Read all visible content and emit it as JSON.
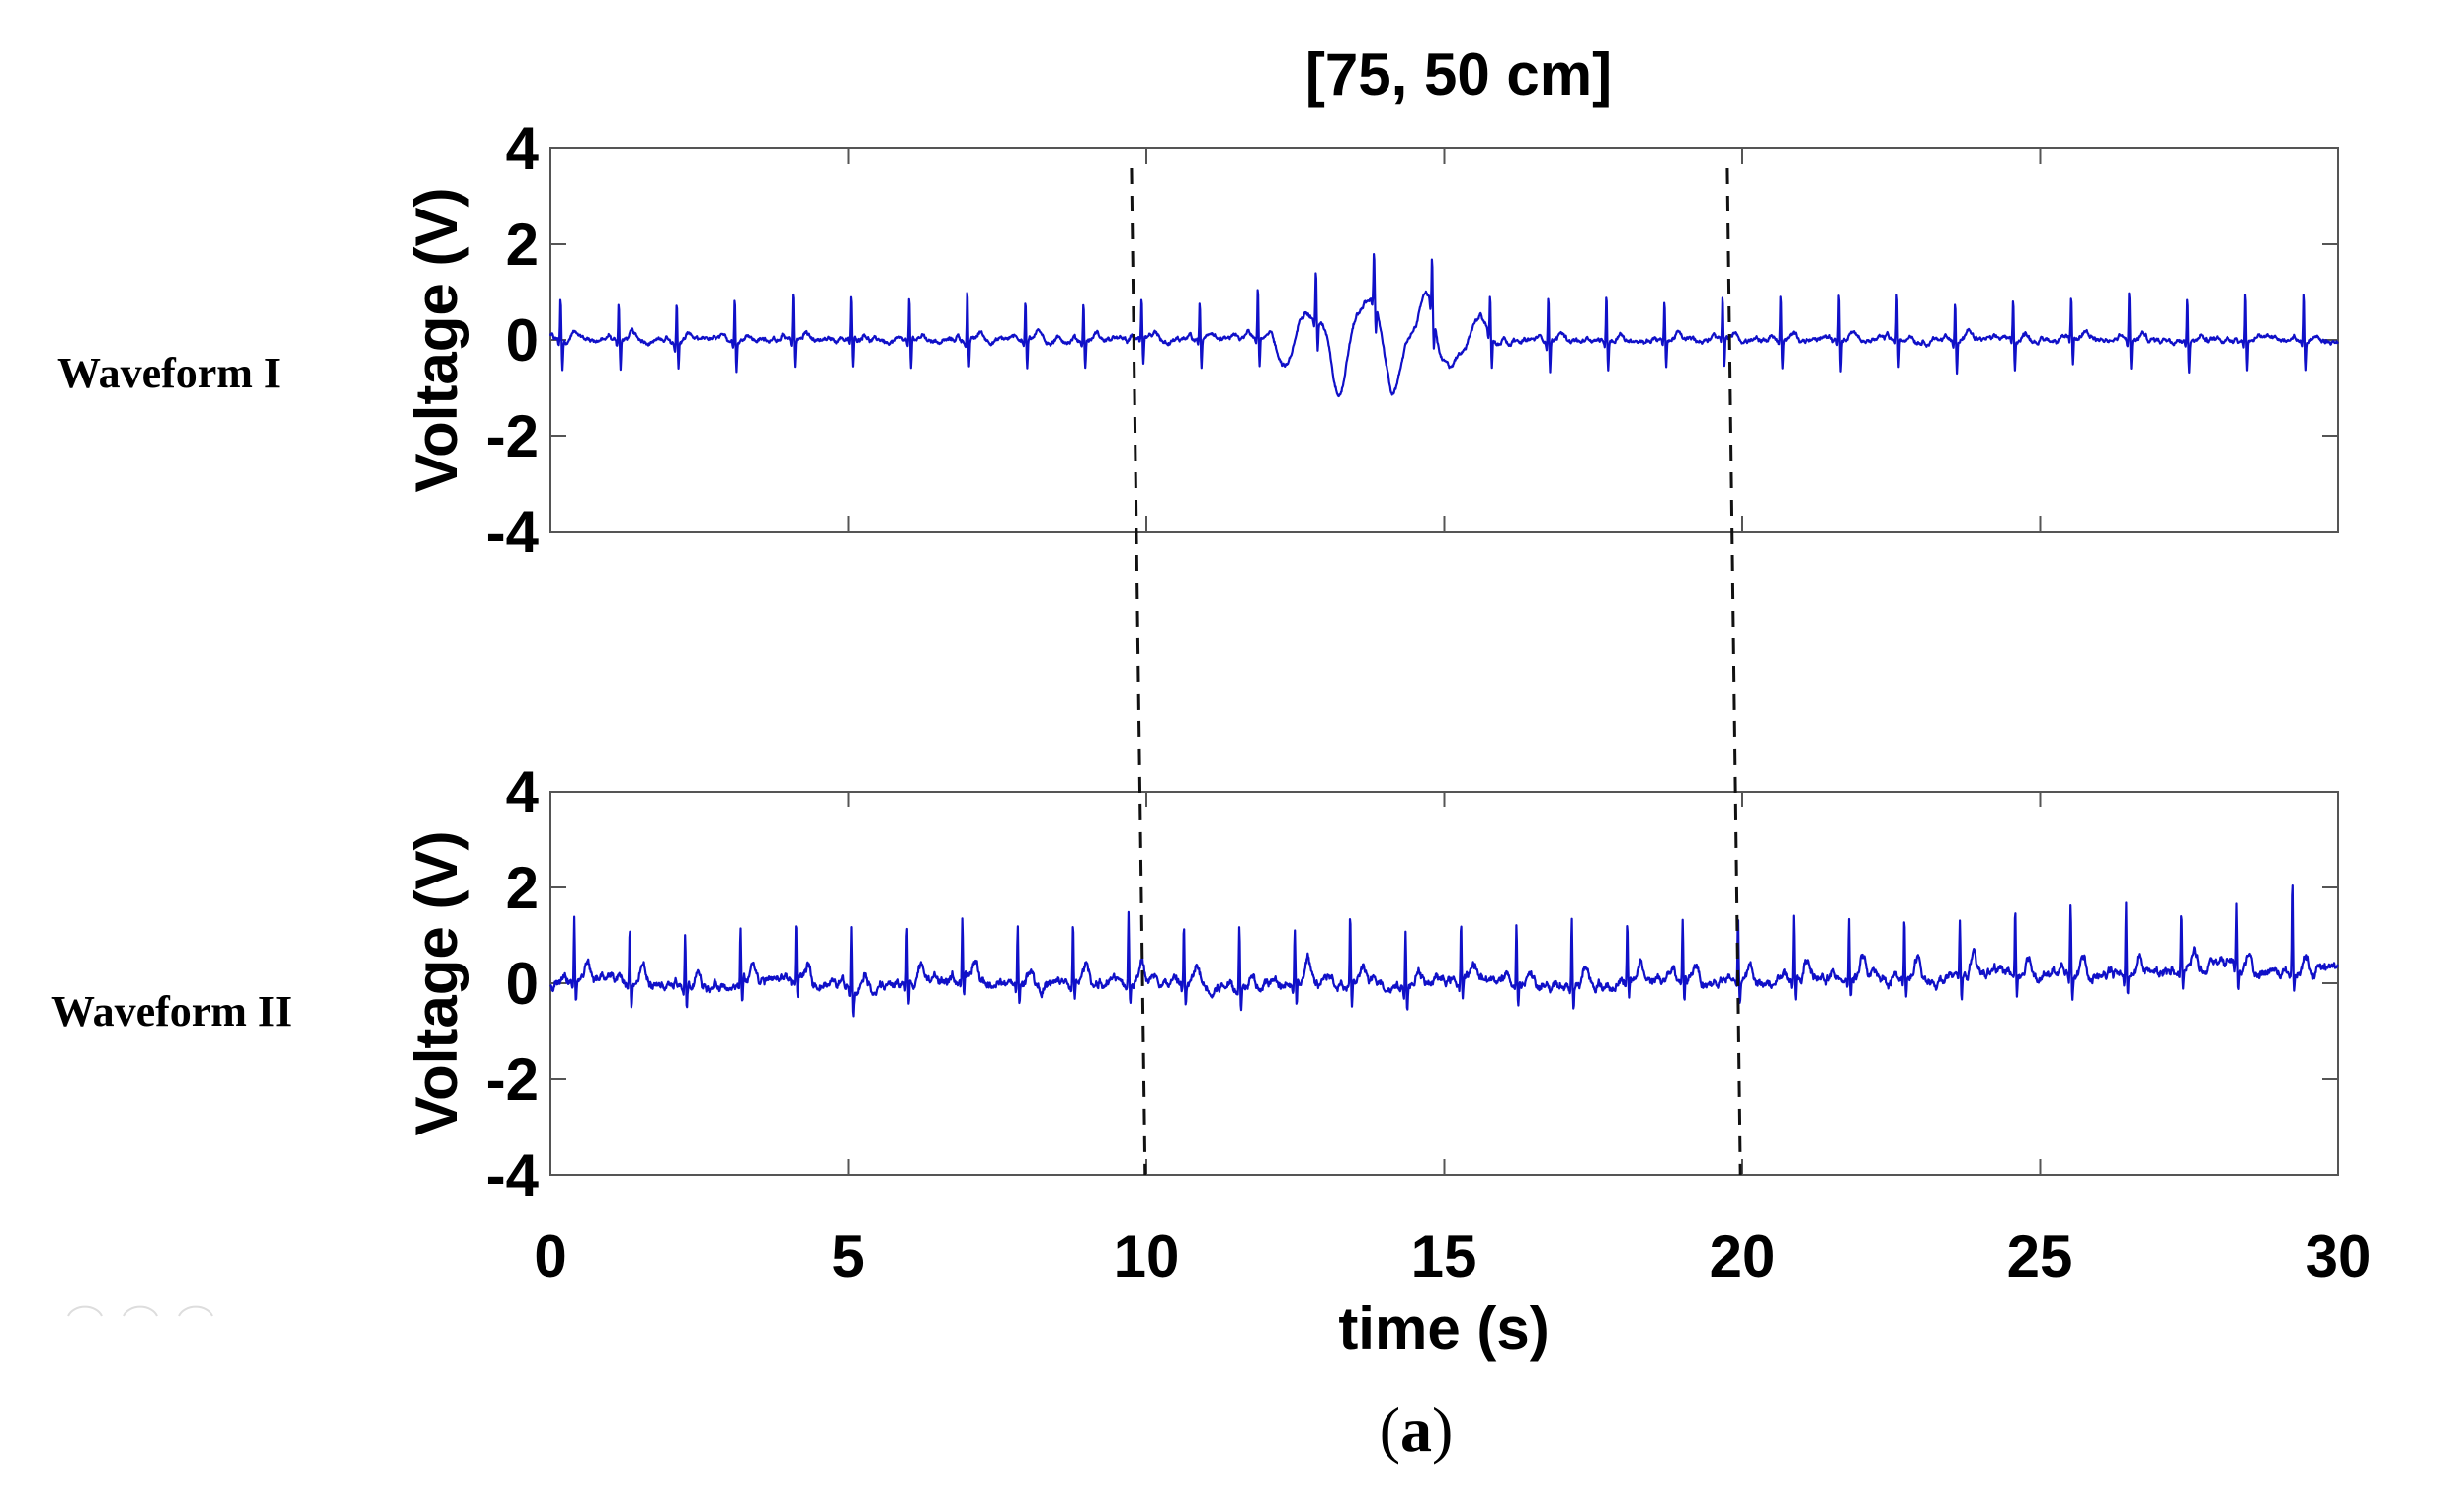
{
  "figure": {
    "title": "[75, 50 cm]",
    "caption_open": "(",
    "caption_letter": "a",
    "caption_close": ")",
    "xlabel": "time (s)",
    "line_color": "#1010c8",
    "axis_color": "#555555",
    "marker_color": "#111111"
  },
  "chart_data": {
    "type": "line",
    "title": "[75, 50 cm]",
    "xlabel": "time (s)",
    "xlim": [
      0,
      30
    ],
    "xticks": [
      0,
      5,
      10,
      15,
      20,
      25,
      30
    ],
    "shared_x": true,
    "grid": false,
    "legend": "none",
    "markers": {
      "type": "dashed-vertical-lines",
      "description": "Two dashed lines spanning both panels marking the analysed window",
      "lines": [
        {
          "t_top": 9.75,
          "t_bottom": 9.98
        },
        {
          "t_top": 19.75,
          "t_bottom": 19.97
        }
      ]
    },
    "panels": [
      {
        "name": "Waveform I",
        "ylabel": "Voltage (V)",
        "ylim": [
          -4,
          4
        ],
        "yticks": [
          -4,
          -2,
          0,
          2,
          4
        ],
        "series": {
          "name": "Waveform I",
          "kind": "ECG",
          "baseline_V": 0.0,
          "r_peak_V": 0.95,
          "s_trough_V": -0.6,
          "t_wave_V": 0.15,
          "first_beat_s": 0.17,
          "beat_period_s": 0.975,
          "noise_V": 0.03,
          "motion_artifact": {
            "start_s": 11.6,
            "end_s": 16.9,
            "max_V": 1.4,
            "min_V": -1.35,
            "description": "large low-frequency swings between ~12 s and ~17 s"
          }
        }
      },
      {
        "name": "Waveform II",
        "ylabel": "Voltage (V)",
        "ylim": [
          -4,
          4
        ],
        "yticks": [
          -4,
          -2,
          0,
          2,
          4
        ],
        "series": {
          "name": "Waveform II",
          "kind": "ECG",
          "baseline_V": 0.0,
          "baseline_drift_end_V": 0.3,
          "r_peak_V": 1.35,
          "s_trough_V": -0.45,
          "t_wave_V": 0.4,
          "first_beat_s": 0.4,
          "beat_period_s": 0.93,
          "noise_V": 0.06,
          "last_peak_V": 1.95
        }
      }
    ]
  },
  "panels": [
    {
      "label": "Waveform I",
      "ylabel": "Voltage (V)",
      "yticks": [
        "4",
        "2",
        "0",
        "-2",
        "-4"
      ]
    },
    {
      "label": "Waveform II",
      "ylabel": "Voltage (V)",
      "yticks": [
        "4",
        "2",
        "0",
        "-2",
        "-4"
      ]
    }
  ],
  "xticks": [
    "0",
    "5",
    "10",
    "15",
    "20",
    "25",
    "30"
  ]
}
